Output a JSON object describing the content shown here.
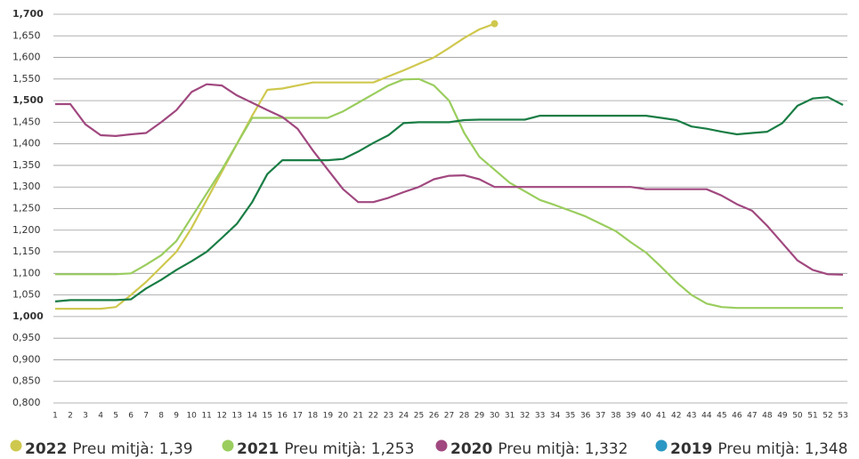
{
  "chart_data": {
    "type": "line",
    "x": [
      1,
      2,
      3,
      4,
      5,
      6,
      7,
      8,
      9,
      10,
      11,
      12,
      13,
      14,
      15,
      16,
      17,
      18,
      19,
      20,
      21,
      22,
      23,
      24,
      25,
      26,
      27,
      28,
      29,
      30,
      31,
      32,
      33,
      34,
      35,
      36,
      37,
      38,
      39,
      40,
      41,
      42,
      43,
      44,
      45,
      46,
      47,
      48,
      49,
      50,
      51,
      52,
      53
    ],
    "xlim": [
      1,
      53
    ],
    "ylim": [
      0.8,
      1.7
    ],
    "yticks": [
      {
        "value": 0.8,
        "label": "0,800"
      },
      {
        "value": 0.85,
        "label": "0,850"
      },
      {
        "value": 0.9,
        "label": "0,900"
      },
      {
        "value": 0.95,
        "label": "0,950"
      },
      {
        "value": 1.0,
        "label": "1,000",
        "bold": true
      },
      {
        "value": 1.05,
        "label": "1,050"
      },
      {
        "value": 1.1,
        "label": "1,100"
      },
      {
        "value": 1.15,
        "label": "1,150"
      },
      {
        "value": 1.2,
        "label": "1,200"
      },
      {
        "value": 1.25,
        "label": "1,250"
      },
      {
        "value": 1.3,
        "label": "1,300"
      },
      {
        "value": 1.35,
        "label": "1,350"
      },
      {
        "value": 1.4,
        "label": "1,400"
      },
      {
        "value": 1.45,
        "label": "1,450"
      },
      {
        "value": 1.5,
        "label": "1,500",
        "bold": true
      },
      {
        "value": 1.55,
        "label": "1,550"
      },
      {
        "value": 1.6,
        "label": "1,600"
      },
      {
        "value": 1.65,
        "label": "1,650"
      },
      {
        "value": 1.7,
        "label": "1,700",
        "bold": true
      }
    ],
    "grid": true,
    "legend": "bottom",
    "series": [
      {
        "name": "2022",
        "legend_text": "Preu mitjà: 1,39",
        "color": "#cfc84e",
        "end_marker": true,
        "values": [
          1.018,
          1.018,
          1.018,
          1.018,
          1.022,
          1.05,
          1.08,
          1.115,
          1.15,
          1.205,
          1.27,
          1.335,
          1.4,
          1.465,
          1.525,
          1.528,
          1.535,
          1.542,
          1.542,
          1.542,
          1.542,
          1.542,
          1.556,
          1.57,
          1.585,
          1.6,
          1.622,
          1.645,
          1.665,
          1.678,
          null,
          null,
          null,
          null,
          null,
          null,
          null,
          null,
          null,
          null,
          null,
          null,
          null,
          null,
          null,
          null,
          null,
          null,
          null,
          null,
          null,
          null,
          null
        ]
      },
      {
        "name": "2021",
        "legend_text": "Preu mitjà: 1,253",
        "color": "#9acd5e",
        "values": [
          1.098,
          1.098,
          1.098,
          1.098,
          1.098,
          1.1,
          1.12,
          1.142,
          1.175,
          1.23,
          1.285,
          1.34,
          1.4,
          1.46,
          1.46,
          1.46,
          1.46,
          1.46,
          1.46,
          1.475,
          1.495,
          1.515,
          1.535,
          1.549,
          1.55,
          1.535,
          1.5,
          1.425,
          1.37,
          1.34,
          1.31,
          1.29,
          1.27,
          1.258,
          1.245,
          1.232,
          1.215,
          1.198,
          1.172,
          1.148,
          1.115,
          1.08,
          1.05,
          1.03,
          1.022,
          1.02,
          1.02,
          1.02,
          1.02,
          1.02,
          1.02,
          1.02,
          1.02
        ]
      },
      {
        "name": "2020",
        "legend_text": "Preu mitjà: 1,332",
        "color": "#a0487f",
        "values": [
          1.492,
          1.492,
          1.445,
          1.42,
          1.418,
          1.422,
          1.425,
          1.45,
          1.478,
          1.52,
          1.538,
          1.535,
          1.512,
          1.495,
          1.478,
          1.462,
          1.435,
          1.385,
          1.34,
          1.295,
          1.265,
          1.265,
          1.275,
          1.288,
          1.3,
          1.318,
          1.326,
          1.327,
          1.318,
          1.3,
          1.3,
          1.3,
          1.3,
          1.3,
          1.3,
          1.3,
          1.3,
          1.3,
          1.3,
          1.295,
          1.295,
          1.295,
          1.295,
          1.295,
          1.28,
          1.26,
          1.245,
          1.21,
          1.17,
          1.13,
          1.108,
          1.098,
          1.097
        ]
      },
      {
        "name": "2019",
        "legend_text": "Preu mitjà: 1,348",
        "color": "#2a97c4",
        "line_color": "#1a7d45",
        "values": [
          1.035,
          1.038,
          1.038,
          1.038,
          1.038,
          1.04,
          1.065,
          1.085,
          1.108,
          1.128,
          1.15,
          1.182,
          1.215,
          1.265,
          1.33,
          1.362,
          1.362,
          1.362,
          1.362,
          1.365,
          1.382,
          1.402,
          1.42,
          1.448,
          1.45,
          1.45,
          1.45,
          1.455,
          1.456,
          1.456,
          1.456,
          1.456,
          1.465,
          1.465,
          1.465,
          1.465,
          1.465,
          1.465,
          1.465,
          1.465,
          1.46,
          1.455,
          1.44,
          1.435,
          1.428,
          1.422,
          1.425,
          1.428,
          1.448,
          1.488,
          1.505,
          1.508,
          1.49
        ]
      }
    ]
  }
}
